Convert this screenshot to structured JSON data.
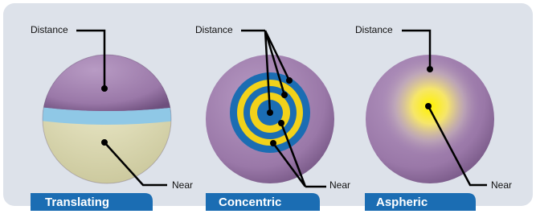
{
  "panels": [
    {
      "title": "Translating",
      "distance_label": "Distance",
      "near_label": "Near"
    },
    {
      "title": "Concentric",
      "distance_label": "Distance",
      "near_label": "Near"
    },
    {
      "title": "Aspheric",
      "distance_label": "Distance",
      "near_label": "Near"
    }
  ]
}
